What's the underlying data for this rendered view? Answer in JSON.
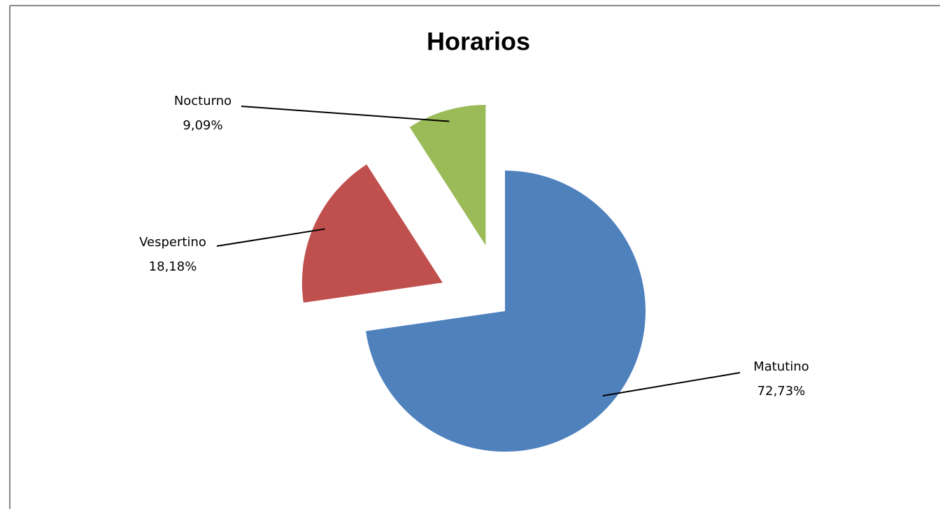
{
  "chart_data": {
    "type": "pie",
    "title": "Horarios",
    "categories": [
      "Matutino",
      "Vespertino",
      "Nocturno"
    ],
    "values": [
      72.73,
      18.18,
      9.09
    ],
    "value_labels": [
      "72,73%",
      "18,18%",
      "9,09%"
    ],
    "colors": [
      "#4f81bd",
      "#c0504d",
      "#9bbb59"
    ],
    "exploded": [
      false,
      true,
      true
    ]
  }
}
